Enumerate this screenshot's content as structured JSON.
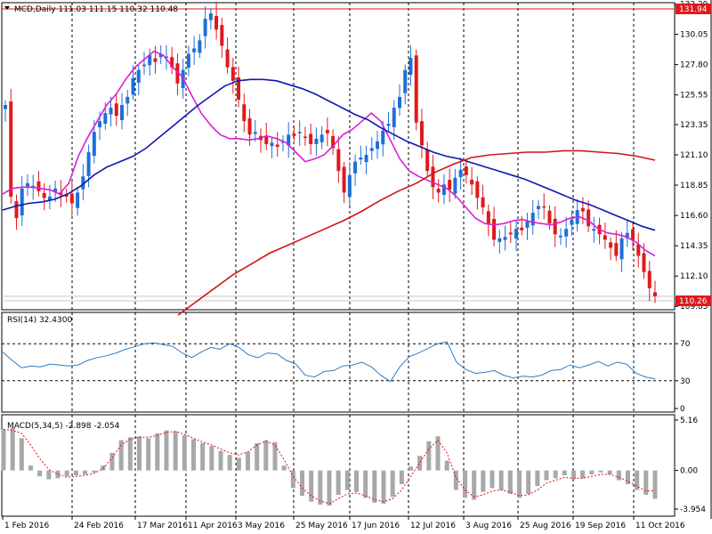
{
  "header": {
    "symbol_line": "MCD,Daily  111.03 111.15 110.32 110.48",
    "rsi_label": "RSI(14) 32.4300",
    "macd_label": "MACD(5,34,5) -2.898 -2.054"
  },
  "colors": {
    "bull": "#1e6fd9",
    "bear": "#e0191b",
    "ma_fast": "#d81fd8",
    "ma_mid": "#1016b3",
    "ma_slow": "#d21414",
    "osc_line": "#2a7fc9",
    "hist": "#a8a8a8",
    "signal": "#e01010",
    "grid": "#000000",
    "price_badge": "#e0191b"
  },
  "chart_data": [
    {
      "type": "candlestick",
      "title": "MCD,Daily",
      "ohlc_last": {
        "open": 111.03,
        "high": 111.15,
        "low": 110.32,
        "close": 110.48
      },
      "ylim": [
        109.6,
        132.4
      ],
      "y_ticks": [
        "132.29",
        "130.05",
        "127.80",
        "125.55",
        "123.35",
        "121.10",
        "118.85",
        "116.60",
        "114.35",
        "112.10",
        "109.85"
      ],
      "x_ticks": [
        "1 Feb 2016",
        "24 Feb 2016",
        "17 Mar 2016",
        "11 Apr 2016",
        "3 May 2016",
        "25 May 2016",
        "17 Jun 2016",
        "12 Jul 2016",
        "3 Aug 2016",
        "25 Aug 2016",
        "19 Sep 2016",
        "11 Oct 2016"
      ],
      "hlines": [
        131.94,
        110.26
      ],
      "hline_labels": [
        "131.94",
        "110.26"
      ],
      "close_path": [
        124.8,
        118.0,
        116.4,
        118.6,
        119.0,
        118.8,
        118.4,
        117.9,
        118.0,
        118.6,
        118.1,
        118.0,
        117.5,
        118.3,
        119.5,
        121.3,
        122.8,
        123.6,
        124.2,
        124.6,
        124.0,
        124.8,
        125.4,
        126.8,
        127.4,
        127.8,
        128.5,
        128.0,
        128.6,
        128.4,
        127.6,
        126.4,
        127.4,
        128.6,
        129.0,
        129.6,
        131.2,
        131.6,
        130.4,
        129.2,
        127.6,
        126.6,
        125.2,
        123.6,
        122.6,
        122.8,
        122.2,
        121.9,
        122.0,
        121.7,
        122.1,
        122.6,
        122.5,
        122.8,
        122.4,
        121.9,
        122.3,
        122.6,
        122.7,
        121.6,
        119.9,
        118.3,
        119.6,
        120.6,
        120.9,
        121.1,
        121.6,
        122.1,
        122.9,
        123.4,
        124.6,
        125.4,
        127.4,
        128.3,
        123.5,
        121.8,
        119.9,
        118.7,
        118.3,
        118.9,
        118.5,
        119.4,
        120.0,
        119.6,
        118.9,
        117.9,
        117.2,
        116.0,
        114.8,
        114.9,
        115.0,
        115.2,
        115.6,
        115.5,
        116.2,
        116.8,
        117.3,
        117.2,
        116.0,
        115.2,
        115.1,
        115.6,
        116.3,
        117.0,
        116.9,
        115.8,
        115.6,
        115.2,
        114.8,
        114.2,
        113.6,
        114.9,
        115.3,
        114.8,
        113.6,
        112.4,
        111.2,
        110.6
      ],
      "series": [
        {
          "name": "MA fast",
          "values": [
            118.2,
            118.6,
            118.7,
            118.7,
            118.6,
            118.5,
            118.2,
            119.0,
            121.0,
            122.4,
            123.6,
            124.8,
            125.6,
            126.7,
            127.6,
            128.2,
            128.8,
            128.5,
            127.6,
            126.9,
            125.5,
            124.2,
            123.3,
            122.6,
            122.3,
            122.3,
            122.2,
            122.3,
            122.5,
            122.3,
            122.0,
            121.3,
            120.6,
            120.8,
            121.1,
            121.8,
            122.6,
            123.0,
            123.6,
            124.2,
            123.6,
            122.2,
            120.8,
            119.9,
            119.5,
            119.2,
            118.9,
            118.6,
            118.0,
            117.2,
            116.4,
            116.0,
            115.9,
            116.0,
            116.2,
            116.3,
            116.1,
            116.0,
            115.9,
            116.1,
            116.4,
            116.5,
            116.2,
            115.6,
            115.3,
            115.2,
            115.0,
            114.6,
            114.0,
            113.6
          ]
        },
        {
          "name": "MA mid",
          "values": [
            117.0,
            117.3,
            117.5,
            117.6,
            117.8,
            118.2,
            118.8,
            119.6,
            120.2,
            120.6,
            121.0,
            121.6,
            122.4,
            123.2,
            124.0,
            124.8,
            125.5,
            126.2,
            126.6,
            126.7,
            126.7,
            126.6,
            126.3,
            126.0,
            125.6,
            125.1,
            124.6,
            124.1,
            123.7,
            123.1,
            122.6,
            122.1,
            121.7,
            121.3,
            121.0,
            120.8,
            120.5,
            120.2,
            119.9,
            119.6,
            119.3,
            118.9,
            118.5,
            118.1,
            117.7,
            117.4,
            117.0,
            116.6,
            116.2,
            115.8,
            115.5
          ]
        },
        {
          "name": "MA slow",
          "values": [
            109.2,
            110.2,
            111.2,
            112.2,
            113.0,
            113.8,
            114.4,
            115.0,
            115.6,
            116.2,
            116.9,
            117.7,
            118.4,
            119.0,
            119.8,
            120.4,
            120.9,
            121.1,
            121.2,
            121.3,
            121.3,
            121.4,
            121.4,
            121.3,
            121.2,
            121.0,
            120.7
          ]
        }
      ]
    },
    {
      "type": "line",
      "title": "RSI(14)",
      "value": 32.43,
      "ylim": [
        0,
        100
      ],
      "y_ticks": [
        "70",
        "30",
        "0"
      ],
      "levels": [
        70,
        30
      ],
      "values": [
        61,
        52,
        44,
        46,
        45,
        48,
        47,
        46,
        47,
        52,
        55,
        57,
        60,
        64,
        67,
        70,
        71,
        69,
        67,
        60,
        55,
        61,
        66,
        64,
        70,
        66,
        58,
        55,
        60,
        59,
        52,
        48,
        36,
        34,
        40,
        41,
        46,
        47,
        50,
        45,
        36,
        29,
        45,
        56,
        60,
        65,
        70,
        72,
        50,
        42,
        38,
        39,
        41,
        36,
        33,
        35,
        34,
        36,
        41,
        42,
        47,
        44,
        47,
        51,
        46,
        50,
        48,
        38,
        34,
        32
      ]
    },
    {
      "type": "bar",
      "title": "MACD(5,34,5)",
      "macd": -2.898,
      "signal_value": -2.054,
      "ylim": [
        -3.954,
        5.16
      ],
      "y_ticks": [
        "5.16",
        "0.00",
        "-3.954"
      ],
      "values": [
        4.2,
        4.4,
        3.3,
        0.5,
        -0.6,
        -0.9,
        -0.8,
        -0.6,
        -0.5,
        -0.4,
        -0.2,
        0.5,
        1.8,
        3.1,
        3.4,
        3.5,
        3.3,
        3.8,
        4.1,
        4.0,
        3.6,
        3.2,
        2.8,
        2.5,
        2.0,
        1.6,
        1.3,
        1.9,
        2.8,
        3.1,
        2.9,
        0.5,
        -1.8,
        -2.6,
        -3.2,
        -3.5,
        -3.6,
        -2.5,
        -2.0,
        -2.2,
        -2.8,
        -3.3,
        -3.4,
        -2.7,
        -1.4,
        0.4,
        1.5,
        3.0,
        3.5,
        1.0,
        -2.0,
        -2.8,
        -3.0,
        -2.2,
        -1.8,
        -2.0,
        -2.4,
        -2.8,
        -2.4,
        -1.6,
        -1.0,
        -0.8,
        -0.5,
        -0.9,
        -0.8,
        -0.4,
        -0.2,
        -0.4,
        -1.0,
        -1.4,
        -2.0,
        -2.5,
        -2.9
      ],
      "signal": [
        4.2,
        4.1,
        3.8,
        2.6,
        1.2,
        0.1,
        -0.4,
        -0.7,
        -0.6,
        -0.5,
        -0.3,
        0.2,
        1.3,
        2.6,
        3.2,
        3.4,
        3.4,
        3.6,
        3.9,
        4.0,
        3.7,
        3.3,
        2.9,
        2.6,
        2.2,
        1.8,
        1.6,
        1.9,
        2.6,
        3.0,
        2.6,
        1.1,
        -0.6,
        -1.8,
        -2.6,
        -3.1,
        -3.4,
        -2.9,
        -2.4,
        -2.3,
        -2.6,
        -3.0,
        -3.2,
        -2.9,
        -2.0,
        -0.6,
        0.8,
        2.2,
        3.1,
        1.8,
        -0.7,
        -2.0,
        -2.7,
        -2.5,
        -2.1,
        -2.0,
        -2.2,
        -2.6,
        -2.5,
        -2.0,
        -1.3,
        -1.0,
        -0.7,
        -0.8,
        -0.8,
        -0.6,
        -0.4,
        -0.4,
        -0.7,
        -1.1,
        -1.6,
        -2.1,
        -2.054
      ]
    }
  ]
}
